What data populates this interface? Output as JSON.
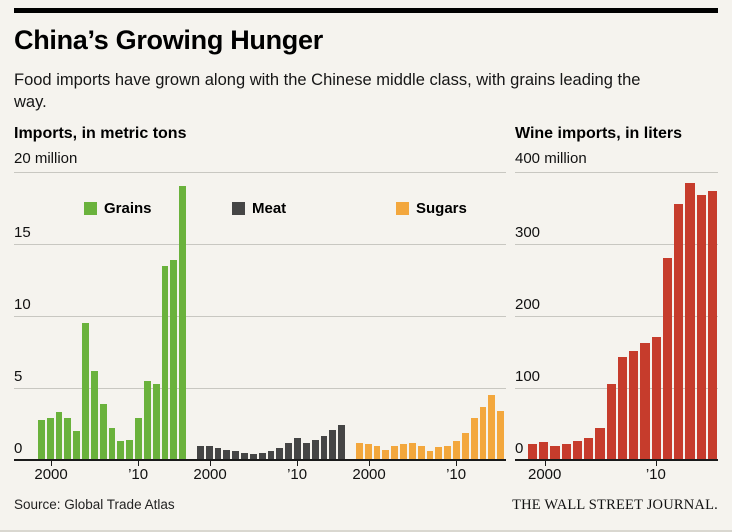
{
  "page": {
    "title": "China’s Growing Hunger",
    "subtitle": "Food imports have grown along with the Chinese middle class, with grains leading the way.",
    "source": "Source: Global Trade Atlas",
    "brand": "THE WALL STREET JOURNAL."
  },
  "colors": {
    "grains": "#6ab23c",
    "meat": "#454545",
    "sugars": "#f3a73d",
    "wine": "#c63c2c",
    "grid": "#c8c7c1",
    "baseline": "#1a1a1a",
    "background": "#f5f3ee"
  },
  "legend": [
    {
      "label": "Grains",
      "color_key": "grains"
    },
    {
      "label": "Meat",
      "color_key": "meat"
    },
    {
      "label": "Sugars",
      "color_key": "sugars"
    }
  ],
  "chart_data": [
    {
      "type": "bar",
      "title": "Imports, in metric tons",
      "top_axis_label": "20 million",
      "unit": "million metric tons",
      "ylim": [
        0,
        20
      ],
      "grid": true,
      "legend_position": "top-inside",
      "yticks": [
        {
          "value": 0,
          "label": "0"
        },
        {
          "value": 5,
          "label": "5"
        },
        {
          "value": 10,
          "label": "10"
        },
        {
          "value": 15,
          "label": "15"
        },
        {
          "value": 20,
          "label": ""
        }
      ],
      "years": [
        1999,
        2000,
        2001,
        2002,
        2003,
        2004,
        2005,
        2006,
        2007,
        2008,
        2009,
        2010,
        2011,
        2012,
        2013,
        2014,
        2015
      ],
      "x_ticks": [
        {
          "index": 1,
          "label": "2000"
        },
        {
          "index": 11,
          "label": "’10"
        }
      ],
      "series": [
        {
          "name": "Grains",
          "color_key": "grains",
          "values": [
            2.8,
            2.9,
            3.3,
            2.9,
            2.0,
            9.5,
            6.2,
            3.9,
            2.2,
            1.3,
            1.4,
            2.9,
            5.5,
            5.3,
            13.5,
            13.9,
            19.0
          ]
        },
        {
          "name": "Meat",
          "color_key": "meat",
          "values": [
            1.0,
            1.0,
            0.8,
            0.7,
            0.6,
            0.5,
            0.4,
            0.5,
            0.6,
            0.8,
            1.2,
            1.5,
            1.2,
            1.4,
            1.7,
            2.1,
            2.4
          ]
        },
        {
          "name": "Sugars",
          "color_key": "sugars",
          "values": [
            1.2,
            1.1,
            1.0,
            0.7,
            1.0,
            1.1,
            1.2,
            1.0,
            0.6,
            0.9,
            1.0,
            1.3,
            1.9,
            2.9,
            3.7,
            4.5,
            3.4
          ]
        }
      ]
    },
    {
      "type": "bar",
      "title": "Wine imports, in liters",
      "top_axis_label": "400 million",
      "unit": "million liters",
      "ylim": [
        0,
        400
      ],
      "grid": true,
      "yticks": [
        {
          "value": 0,
          "label": "0"
        },
        {
          "value": 100,
          "label": "100"
        },
        {
          "value": 200,
          "label": "200"
        },
        {
          "value": 300,
          "label": "300"
        },
        {
          "value": 400,
          "label": ""
        }
      ],
      "years": [
        1999,
        2000,
        2001,
        2002,
        2003,
        2004,
        2005,
        2006,
        2007,
        2008,
        2009,
        2010,
        2011,
        2012,
        2013,
        2014,
        2015
      ],
      "x_ticks": [
        {
          "index": 1,
          "label": "2000"
        },
        {
          "index": 11,
          "label": "’10"
        }
      ],
      "series": [
        {
          "name": "Wine",
          "color_key": "wine",
          "values": [
            22,
            25,
            20,
            22,
            26,
            31,
            45,
            105,
            143,
            152,
            163,
            171,
            280,
            355,
            385,
            368,
            374
          ]
        }
      ]
    }
  ]
}
